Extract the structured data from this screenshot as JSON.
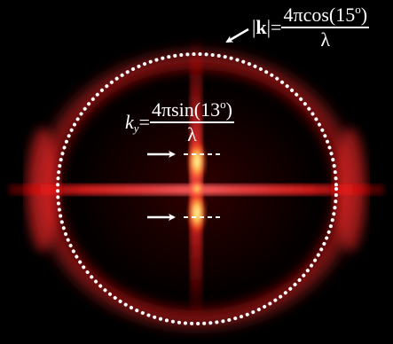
{
  "image": {
    "subject": "diffraction pattern",
    "colors": {
      "background": "#000000",
      "glow": "#ff2a2a",
      "core": "#ffff7a",
      "annotation": "#ffffff"
    }
  },
  "equations": {
    "k_magnitude": {
      "lhs_bar_left": "|",
      "lhs_bold": "k",
      "lhs_bar_right": "|=",
      "numerator": "4πcos(15",
      "degree": "o",
      "numerator_close": ")",
      "denominator": "λ"
    },
    "ky": {
      "lhs_var": "k",
      "lhs_sub": "y",
      "lhs_eq": "=",
      "numerator": "4πsin(13",
      "degree": "o",
      "numerator_close": ")",
      "denominator": "λ"
    }
  },
  "icons": {
    "arrow": "arrow-icon"
  }
}
